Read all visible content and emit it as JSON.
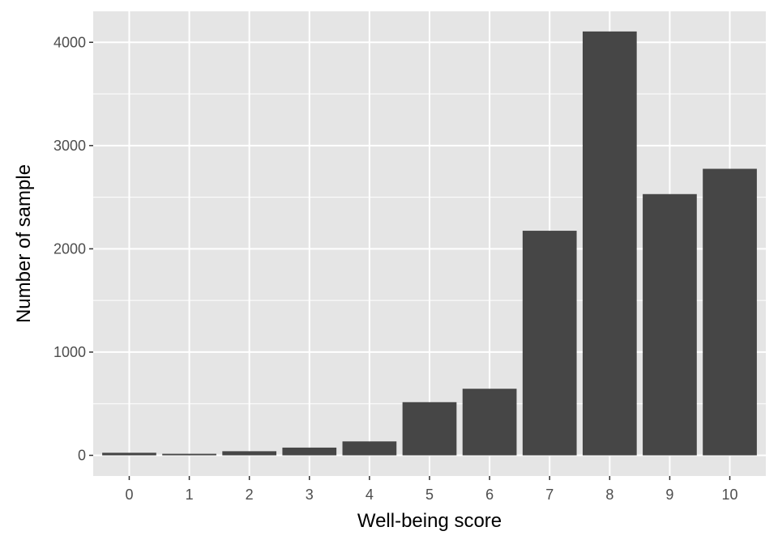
{
  "chart_data": {
    "type": "bar",
    "title": "",
    "xlabel": "Well-being score",
    "ylabel": "Number of sample",
    "categories": [
      "0",
      "1",
      "2",
      "3",
      "4",
      "5",
      "6",
      "7",
      "8",
      "9",
      "10"
    ],
    "values": [
      25,
      15,
      40,
      75,
      135,
      515,
      645,
      2175,
      4105,
      2530,
      2775
    ],
    "ylim": [
      -200,
      4300
    ],
    "yticks": [
      0,
      1000,
      2000,
      3000,
      4000
    ],
    "ytick_labels": [
      "0",
      "1000",
      "2000",
      "3000",
      "4000"
    ],
    "grid": true,
    "legend": "none",
    "colors": {
      "panel_background": "#e5e5e5",
      "grid": "#ffffff",
      "bar_fill": "#464646",
      "tick_text": "#4d4d4d",
      "axis_title": "#000000"
    }
  }
}
